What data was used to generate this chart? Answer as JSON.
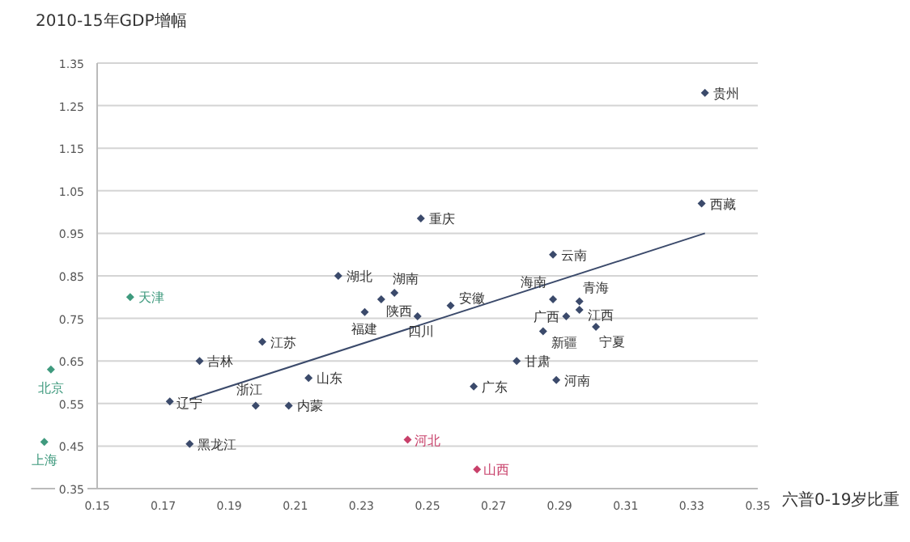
{
  "chart_data": {
    "type": "scatter",
    "ylabel": "2010-15年GDP增幅",
    "xlabel": "六普0-19岁比重",
    "xlim": [
      0.13,
      0.35
    ],
    "ylim": [
      0.35,
      1.35
    ],
    "xticks": [
      0.15,
      0.17,
      0.19,
      0.21,
      0.23,
      0.25,
      0.27,
      0.29,
      0.31,
      0.33,
      0.35
    ],
    "yticks": [
      0.35,
      0.45,
      0.55,
      0.65,
      0.75,
      0.85,
      0.95,
      1.05,
      1.15,
      1.25,
      1.35
    ],
    "grid": "y",
    "marker": "diamond",
    "series": [
      {
        "color": "#3b4a6b",
        "x": [
          0.334,
          0.333,
          0.248,
          0.288,
          0.223,
          0.24,
          0.236,
          0.231,
          0.247,
          0.257,
          0.288,
          0.296,
          0.292,
          0.296,
          0.285,
          0.301,
          0.277,
          0.289,
          0.264,
          0.2,
          0.181,
          0.214,
          0.172,
          0.198,
          0.208,
          0.178
        ],
        "values": [
          1.28,
          1.02,
          0.985,
          0.9,
          0.85,
          0.81,
          0.795,
          0.765,
          0.755,
          0.78,
          0.795,
          0.79,
          0.755,
          0.77,
          0.72,
          0.73,
          0.65,
          0.605,
          0.59,
          0.695,
          0.65,
          0.61,
          0.555,
          0.545,
          0.545,
          0.455
        ]
      },
      {
        "color": "#3f9a7e",
        "x": [
          0.16,
          0.136,
          0.134
        ],
        "values": [
          0.8,
          0.63,
          0.46
        ]
      },
      {
        "color": "#c8406a",
        "x": [
          0.244,
          0.265
        ],
        "values": [
          0.465,
          0.395
        ]
      },
      {
        "type": "line",
        "marker": "none",
        "color": "#3b4a6b",
        "x": [
          0.178,
          0.334
        ],
        "values": [
          0.56,
          0.95
        ]
      }
    ],
    "annotations": [
      {
        "text": "贵州",
        "x": 0.334,
        "y": 1.28
      },
      {
        "text": "西藏",
        "x": 0.333,
        "y": 1.02
      },
      {
        "text": "重庆",
        "x": 0.248,
        "y": 0.985
      },
      {
        "text": "云南",
        "x": 0.288,
        "y": 0.9
      },
      {
        "text": "湖北",
        "x": 0.223,
        "y": 0.85
      },
      {
        "text": "湖南",
        "x": 0.24,
        "y": 0.81
      },
      {
        "text": "陕西",
        "x": 0.236,
        "y": 0.795
      },
      {
        "text": "福建",
        "x": 0.231,
        "y": 0.765
      },
      {
        "text": "四川",
        "x": 0.247,
        "y": 0.755
      },
      {
        "text": "安徽",
        "x": 0.257,
        "y": 0.78
      },
      {
        "text": "海南",
        "x": 0.288,
        "y": 0.795
      },
      {
        "text": "青海",
        "x": 0.296,
        "y": 0.79
      },
      {
        "text": "广西",
        "x": 0.292,
        "y": 0.755
      },
      {
        "text": "江西",
        "x": 0.296,
        "y": 0.77
      },
      {
        "text": "新疆",
        "x": 0.285,
        "y": 0.72
      },
      {
        "text": "宁夏",
        "x": 0.301,
        "y": 0.73
      },
      {
        "text": "甘肃",
        "x": 0.277,
        "y": 0.65
      },
      {
        "text": "河南",
        "x": 0.289,
        "y": 0.605
      },
      {
        "text": "广东",
        "x": 0.264,
        "y": 0.59
      },
      {
        "text": "江苏",
        "x": 0.2,
        "y": 0.695
      },
      {
        "text": "吉林",
        "x": 0.181,
        "y": 0.65
      },
      {
        "text": "山东",
        "x": 0.214,
        "y": 0.61
      },
      {
        "text": "辽宁",
        "x": 0.172,
        "y": 0.555
      },
      {
        "text": "浙江",
        "x": 0.198,
        "y": 0.545
      },
      {
        "text": "内蒙",
        "x": 0.208,
        "y": 0.545
      },
      {
        "text": "黑龙江",
        "x": 0.178,
        "y": 0.455
      },
      {
        "text": "天津",
        "x": 0.16,
        "y": 0.8
      },
      {
        "text": "北京",
        "x": 0.136,
        "y": 0.63
      },
      {
        "text": "上海",
        "x": 0.134,
        "y": 0.46
      },
      {
        "text": "河北",
        "x": 0.244,
        "y": 0.465
      },
      {
        "text": "山西",
        "x": 0.265,
        "y": 0.395
      }
    ]
  }
}
